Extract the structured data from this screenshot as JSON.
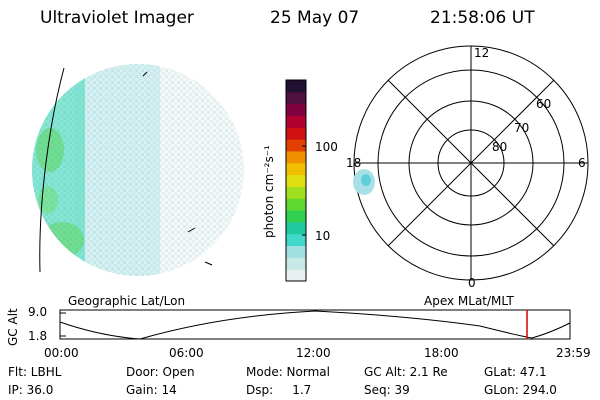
{
  "header": {
    "title": "Ultraviolet Imager",
    "date": "25 May 07",
    "time": "21:58:06 UT"
  },
  "colorbar": {
    "unit_label": "photon cm⁻²s⁻¹",
    "ticks": [
      "100",
      "10"
    ],
    "colors": [
      "#e8f0f0",
      "#c8e8e8",
      "#a0e0e0",
      "#40d8c8",
      "#20c8a0",
      "#30d050",
      "#60d830",
      "#a0e020",
      "#e0e010",
      "#f0c000",
      "#f09000",
      "#e04000",
      "#d01010",
      "#b00030",
      "#800040",
      "#501040",
      "#201030"
    ]
  },
  "polar_plot": {
    "mlt_labels": {
      "top": "12",
      "right": "6",
      "bottom": "0",
      "left": "18"
    },
    "lat_labels": [
      "60",
      "70",
      "80"
    ]
  },
  "panel_labels": {
    "left": "Geographic Lat/Lon",
    "right": "Apex MLat/MLT"
  },
  "timeline": {
    "y_axis_label": "GC Alt",
    "y_ticks": [
      "9.0",
      "1.8"
    ],
    "x_ticks": [
      "00:00",
      "06:00",
      "12:00",
      "18:00",
      "23:59"
    ]
  },
  "info": {
    "row1": {
      "flt": "Flt: LBHL",
      "door": "Door: Open",
      "mode": "Mode: Normal",
      "gc_alt": "GC Alt: 2.1 Re",
      "glat": "GLat:  47.1"
    },
    "row2": {
      "ip": "IP: 36.0",
      "gain": "Gain: 14",
      "dsp": "Dsp:     1.7",
      "seq": "Seq: 39",
      "glon": "GLon: 294.0"
    }
  }
}
